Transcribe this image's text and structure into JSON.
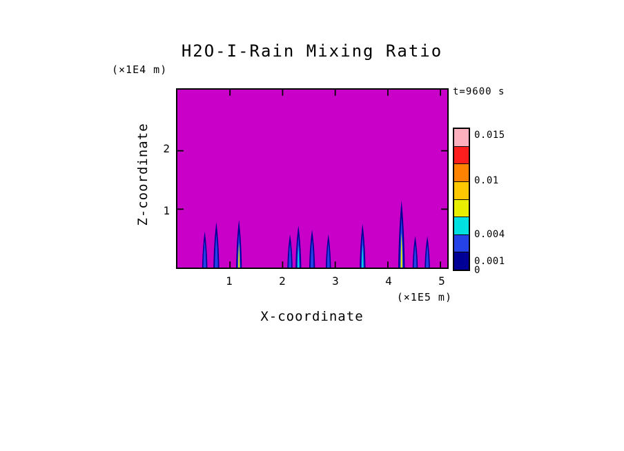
{
  "chart_data": {
    "type": "contour",
    "title": "H2O-I-Rain Mixing Ratio",
    "time_label": "t=9600 s",
    "xlabel": "X-coordinate",
    "x_unit_label": "(×1E5 m)",
    "ylabel": "Z-coordinate",
    "y_unit_label": "(×1E4 m)",
    "x_tick_labels": [
      "1",
      "2",
      "3",
      "4",
      "5"
    ],
    "y_tick_labels": [
      "2",
      "1"
    ],
    "x_ticks": [
      1,
      2,
      3,
      4,
      5
    ],
    "y_ticks": [
      1,
      2
    ],
    "x_axis_range_1e5_m": [
      0,
      5.13
    ],
    "z_axis_range_1e4_m": [
      0,
      3.05
    ],
    "grid": false,
    "legend_position": "right-colorbar",
    "colors": {
      "background": "#c800c8",
      "frame": "#000000",
      "plume_outer": "#000096",
      "plume_inner": "#2442e8",
      "core_cyan": "#00e0e0",
      "core_yellow": "#e8ee00"
    },
    "colorbar": {
      "tick_labels": [
        "0.015",
        "0.01",
        "0.004",
        "0.001",
        "0"
      ],
      "levels": [
        0,
        0.001,
        0.004,
        0.01,
        0.015
      ],
      "segment_colors_bottom_to_top": [
        "#000096",
        "#2442e8",
        "#00e0e0",
        "#e8ee00",
        "#ffc800",
        "#ff8200",
        "#ff1e1e",
        "#ffb0be"
      ]
    },
    "plumes": [
      {
        "x_1e5_m": 0.52,
        "z_top_1e4_m": 0.62,
        "half_width_1e5_m": 0.05,
        "core": null
      },
      {
        "x_1e5_m": 0.74,
        "z_top_1e4_m": 0.78,
        "half_width_1e5_m": 0.055,
        "core": null
      },
      {
        "x_1e5_m": 1.17,
        "z_top_1e4_m": 0.82,
        "half_width_1e5_m": 0.055,
        "core": "core_yellow"
      },
      {
        "x_1e5_m": 2.14,
        "z_top_1e4_m": 0.57,
        "half_width_1e5_m": 0.05,
        "core": null
      },
      {
        "x_1e5_m": 2.3,
        "z_top_1e4_m": 0.72,
        "half_width_1e5_m": 0.055,
        "core": "core_cyan"
      },
      {
        "x_1e5_m": 2.56,
        "z_top_1e4_m": 0.65,
        "half_width_1e5_m": 0.055,
        "core": null
      },
      {
        "x_1e5_m": 2.87,
        "z_top_1e4_m": 0.57,
        "half_width_1e5_m": 0.05,
        "core": null
      },
      {
        "x_1e5_m": 3.52,
        "z_top_1e4_m": 0.75,
        "half_width_1e5_m": 0.055,
        "core": "core_cyan"
      },
      {
        "x_1e5_m": 4.26,
        "z_top_1e4_m": 1.15,
        "half_width_1e5_m": 0.062,
        "core": "core_yellow"
      },
      {
        "x_1e5_m": 4.52,
        "z_top_1e4_m": 0.54,
        "half_width_1e5_m": 0.05,
        "core": null
      },
      {
        "x_1e5_m": 4.75,
        "z_top_1e4_m": 0.54,
        "half_width_1e5_m": 0.05,
        "core": null
      }
    ]
  }
}
